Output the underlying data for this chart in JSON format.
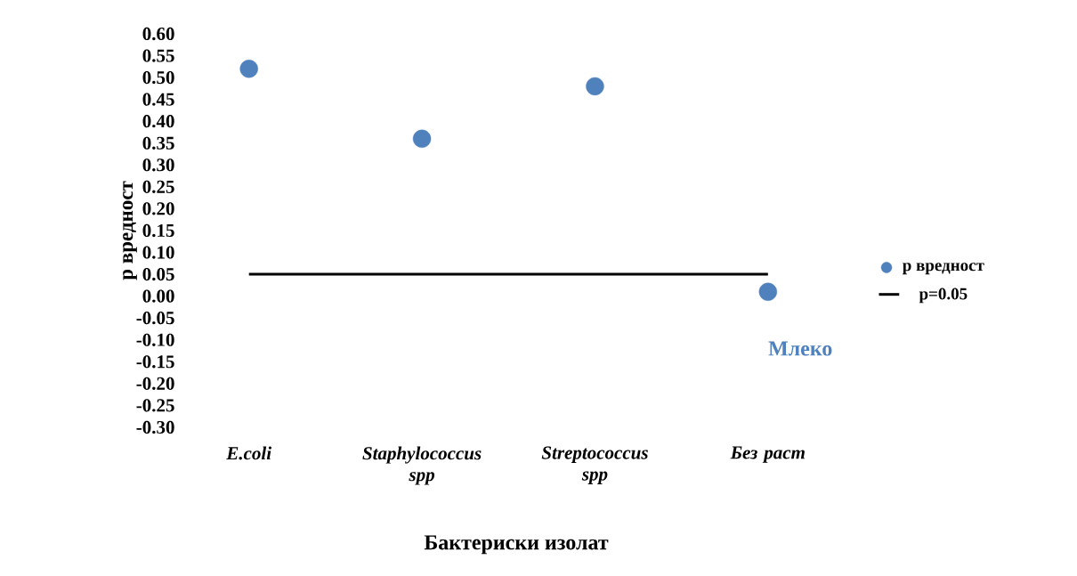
{
  "chart_data": {
    "type": "scatter",
    "ylabel": "p вредност",
    "xlabel": "Бактериски изолат",
    "categories": [
      "*E.coli*",
      "*Staphylococcus spp*",
      "*Streptococcus spp*",
      "*Без раст*"
    ],
    "series": [
      {
        "name": "p вредност",
        "color": "#4f81bd",
        "marker": "circle",
        "values": [
          0.52,
          0.36,
          0.48,
          0.01
        ]
      },
      {
        "name": "p=0.05",
        "type": "line",
        "color": "#000000",
        "marker": "none",
        "values": [
          0.05,
          0.05,
          0.05,
          0.05
        ]
      }
    ],
    "ylim": [
      -0.3,
      0.6
    ],
    "yticks": [
      {
        "value": 0.6,
        "label": "0.60"
      },
      {
        "value": 0.55,
        "label": "0.55"
      },
      {
        "value": 0.5,
        "label": "0.50"
      },
      {
        "value": 0.45,
        "label": "0.45"
      },
      {
        "value": 0.4,
        "label": "0.40"
      },
      {
        "value": 0.35,
        "label": "0.35"
      },
      {
        "value": 0.3,
        "label": "0.30"
      },
      {
        "value": 0.25,
        "label": "0.25"
      },
      {
        "value": 0.2,
        "label": "0.20"
      },
      {
        "value": 0.15,
        "label": "0.15"
      },
      {
        "value": 0.1,
        "label": "0.10"
      },
      {
        "value": 0.05,
        "label": "0.05"
      },
      {
        "value": 0.0,
        "label": "0.00"
      },
      {
        "value": -0.05,
        "label": "-0.05"
      },
      {
        "value": -0.1,
        "label": "-0.10"
      },
      {
        "value": -0.15,
        "label": "-0.15"
      },
      {
        "value": -0.2,
        "label": "-0.20"
      },
      {
        "value": -0.25,
        "label": "-0.25"
      },
      {
        "value": -0.3,
        "label": "-0.30"
      }
    ],
    "annotations": [
      "Млеко"
    ],
    "legend": "right"
  }
}
